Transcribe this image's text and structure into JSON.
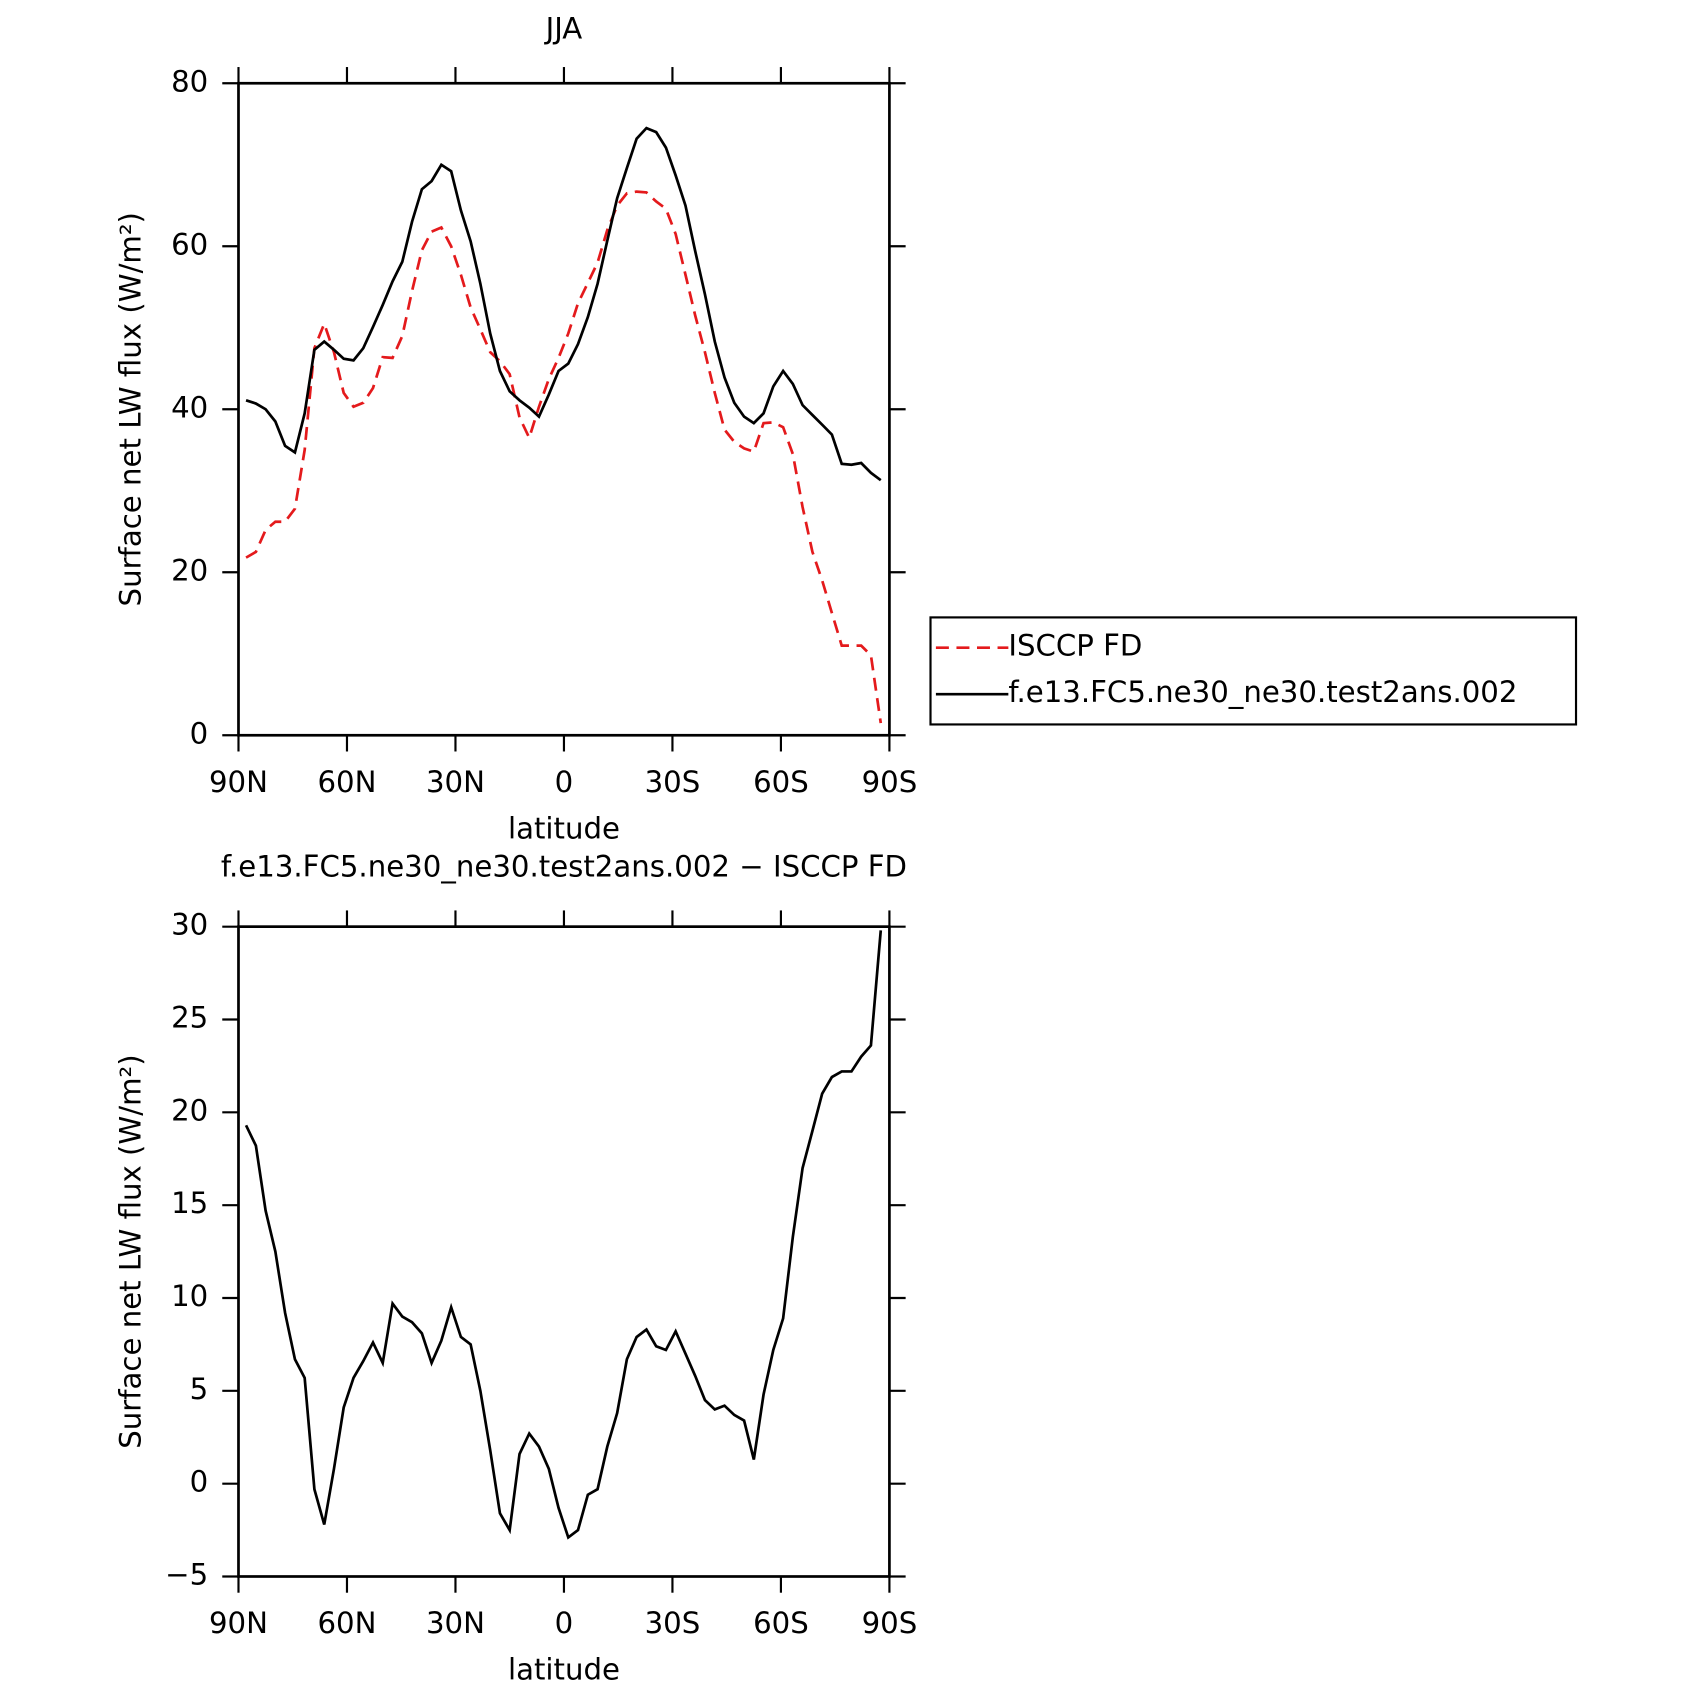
{
  "chart_data": [
    {
      "type": "line",
      "title": "JJA",
      "xlabel": "latitude",
      "ylabel": "Surface net LW flux (W/m²)",
      "x": [
        87.9,
        85.2,
        82.5,
        79.8,
        77.1,
        74.4,
        71.7,
        69.0,
        66.3,
        63.6,
        60.9,
        58.2,
        55.5,
        52.8,
        50.1,
        47.4,
        44.7,
        42.0,
        39.3,
        36.6,
        33.9,
        31.2,
        28.5,
        25.8,
        23.1,
        20.4,
        17.7,
        15.0,
        12.3,
        9.6,
        6.9,
        4.2,
        1.5,
        -1.2,
        -3.9,
        -6.6,
        -9.3,
        -12.0,
        -14.7,
        -17.4,
        -20.1,
        -22.8,
        -25.5,
        -28.2,
        -30.9,
        -33.6,
        -36.3,
        -39.0,
        -41.7,
        -44.4,
        -47.1,
        -49.8,
        -52.5,
        -55.2,
        -57.9,
        -60.6,
        -63.3,
        -66.0,
        -68.7,
        -71.4,
        -74.1,
        -76.8,
        -79.5,
        -82.2,
        -84.9,
        -87.6
      ],
      "series": [
        {
          "name": "ISCCP FD",
          "color": "#e41a1c",
          "dashed": true,
          "values": [
            21.8,
            22.5,
            25.2,
            26.2,
            26.2,
            27.8,
            35,
            47.5,
            50.5,
            47,
            42,
            40.3,
            40.8,
            42.6,
            46.4,
            46.3,
            49,
            54.5,
            59.5,
            61.8,
            62.3,
            60,
            56.5,
            52.5,
            49.8,
            47,
            45.9,
            44.3,
            39,
            36.5,
            40.3,
            43.7,
            46.3,
            49.3,
            53,
            55.5,
            58,
            62,
            65,
            66.5,
            66.7,
            66.6,
            65.5,
            64.6,
            61.5,
            56.5,
            51.5,
            47,
            42,
            37.5,
            36,
            35.2,
            34.8,
            38.3,
            38.4,
            37.8,
            34.5,
            28,
            22.5,
            19,
            15,
            11,
            11,
            11,
            9.8,
            1.5
          ]
        },
        {
          "name": "f.e13.FC5.ne30_ne30.test2ans.002",
          "color": "#000000",
          "dashed": false,
          "values": [
            41.1,
            40.7,
            40,
            38.5,
            35.5,
            34.7,
            39.5,
            47.3,
            48.3,
            47.3,
            46.2,
            46,
            47.5,
            50.1,
            52.8,
            55.7,
            58.1,
            63,
            67,
            68,
            70,
            69.2,
            64.4,
            60.6,
            55.4,
            49.3,
            44.7,
            42.2,
            41.1,
            40.2,
            39.1,
            41.8,
            44.7,
            45.6,
            48,
            51.3,
            55.4,
            60.7,
            65.9,
            69.6,
            73.2,
            74.5,
            74,
            72.1,
            68.7,
            65,
            59.4,
            54.1,
            48.3,
            43.9,
            40.8,
            39.1,
            38.3,
            39.5,
            42.8,
            44.7,
            43.1,
            40.5,
            39.3,
            38.1,
            36.9,
            33.3,
            33.2,
            33.4,
            32.2,
            31.3
          ]
        }
      ],
      "xlim": [
        90,
        -90
      ],
      "xticks": [
        {
          "value": 90,
          "label": "90N"
        },
        {
          "value": 60,
          "label": "60N"
        },
        {
          "value": 30,
          "label": "30N"
        },
        0,
        {
          "value": -30,
          "label": "30S"
        },
        {
          "value": -60,
          "label": "60S"
        },
        {
          "value": -90,
          "label": "90S"
        }
      ],
      "ylim": [
        0,
        80
      ],
      "yticks": [
        0,
        20,
        40,
        60,
        80
      ],
      "legend": "right"
    },
    {
      "type": "line",
      "title": "f.e13.FC5.ne30_ne30.test2ans.002 − ISCCP FD",
      "xlabel": "latitude",
      "ylabel": "Surface net LW flux (W/m²)",
      "x": [
        87.9,
        85.2,
        82.5,
        79.8,
        77.1,
        74.4,
        71.7,
        69.0,
        66.3,
        63.6,
        60.9,
        58.2,
        55.5,
        52.8,
        50.1,
        47.4,
        44.7,
        42.0,
        39.3,
        36.6,
        33.9,
        31.2,
        28.5,
        25.8,
        23.1,
        20.4,
        17.7,
        15.0,
        12.3,
        9.6,
        6.9,
        4.2,
        1.5,
        -1.2,
        -3.9,
        -6.6,
        -9.3,
        -12.0,
        -14.7,
        -17.4,
        -20.1,
        -22.8,
        -25.5,
        -28.2,
        -30.9,
        -33.6,
        -36.3,
        -39.0,
        -41.7,
        -44.4,
        -47.1,
        -49.8,
        -52.5,
        -55.2,
        -57.9,
        -60.6,
        -63.3,
        -66.0,
        -68.7,
        -71.4,
        -74.1,
        -76.8,
        -79.5,
        -82.2,
        -84.9,
        -87.6
      ],
      "series": [
        {
          "color": "#000000",
          "dashed": false,
          "values": [
            19.3,
            18.2,
            14.7,
            12.5,
            9.2,
            6.7,
            5.7,
            -0.3,
            -2.2,
            0.8,
            4.1,
            5.7,
            6.6,
            7.6,
            6.5,
            9.7,
            9,
            8.7,
            8.1,
            6.5,
            7.7,
            9.5,
            7.9,
            7.5,
            5,
            1.8,
            -1.6,
            -2.5,
            1.6,
            2.7,
            2,
            0.8,
            -1.3,
            -2.9,
            -2.5,
            -0.6,
            -0.3,
            2,
            3.8,
            6.7,
            7.9,
            8.3,
            7.4,
            7.2,
            8.2,
            7,
            5.8,
            4.5,
            4,
            4.2,
            3.7,
            3.4,
            1.3,
            4.8,
            7.2,
            8.9,
            13.3,
            17,
            19.0,
            21.0,
            21.9,
            22.2,
            22.2,
            23.0,
            23.6,
            29.8
          ]
        }
      ],
      "xlim": [
        90,
        -90
      ],
      "xticks": [
        {
          "value": 90,
          "label": "90N"
        },
        {
          "value": 60,
          "label": "60N"
        },
        {
          "value": 30,
          "label": "30N"
        },
        0,
        {
          "value": -30,
          "label": "30S"
        },
        {
          "value": -60,
          "label": "60S"
        },
        {
          "value": -90,
          "label": "90S"
        }
      ],
      "ylim": [
        -5,
        30
      ],
      "yticks": [
        {
          "value": -5,
          "label": "−5"
        },
        0,
        5,
        10,
        15,
        20,
        25,
        30
      ]
    }
  ]
}
